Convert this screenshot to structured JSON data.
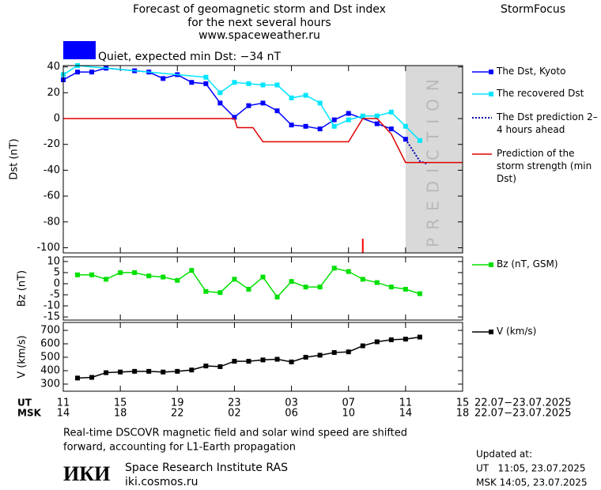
{
  "header": {
    "title": [
      "Forecast of geomagnetic storm and Dst index",
      "for the next several hours",
      "www.spaceweather.ru"
    ],
    "brand": "StormFocus",
    "status": "Quiet, expected min Dst: −34 nT",
    "status_color": "#0000ff"
  },
  "chart_data": [
    {
      "type": "line",
      "ylabel": "Dst (nT)",
      "xlim": [
        0,
        28
      ],
      "ylim": [
        -104,
        41
      ],
      "yticks": [
        40,
        20,
        0,
        -20,
        -40,
        -60,
        -80,
        -100
      ],
      "shade": {
        "from": 24,
        "to": 28,
        "label": "PREDICTION",
        "color": "#d9d9d9"
      },
      "marker_x": 21,
      "marker_color": "#ff0000",
      "series": [
        {
          "name": "The Dst, Kyoto",
          "color": "#0000ff",
          "marker": "square",
          "dash": "solid",
          "x": [
            0,
            1,
            2,
            3,
            5,
            6,
            7,
            8,
            9,
            10,
            11,
            12,
            13,
            14,
            15,
            16,
            17,
            18,
            19,
            20,
            22,
            23,
            24
          ],
          "values": [
            30,
            36,
            36,
            39,
            37,
            36,
            31,
            34,
            28,
            27,
            12,
            1,
            10,
            12,
            6,
            -5,
            -6,
            -8,
            -1,
            4,
            -4,
            -8,
            -16
          ]
        },
        {
          "name": "The recovered Dst",
          "color": "#00e5ff",
          "marker": "square",
          "dash": "solid",
          "x": [
            0,
            1,
            10,
            11,
            12,
            13,
            14,
            15,
            16,
            17,
            18,
            19,
            20,
            21,
            22,
            23,
            24,
            25
          ],
          "values": [
            34,
            41,
            32,
            20,
            28,
            27,
            26,
            26,
            16,
            18,
            12,
            -6,
            -1,
            2,
            2,
            5,
            -6,
            -17
          ]
        },
        {
          "name": "The Dst prediction 2–4 hours ahead",
          "color": "#0000aa",
          "marker": "none",
          "dash": "dotted",
          "x": [
            24,
            25,
            25.5
          ],
          "values": [
            -16,
            -33,
            -35
          ]
        },
        {
          "name": "Prediction of the storm strength (min Dst)",
          "color": "#e00000",
          "marker": "none",
          "dash": "solid",
          "x": [
            0,
            12,
            12.2,
            13.3,
            14,
            20,
            21,
            22,
            23,
            24,
            28
          ],
          "values": [
            0,
            0,
            -7,
            -7,
            -18,
            -18,
            0,
            0,
            -12,
            -34,
            -34
          ]
        }
      ]
    },
    {
      "type": "line",
      "ylabel": "Bz (nT)",
      "xlim": [
        0,
        28
      ],
      "ylim": [
        -16.4,
        12.1
      ],
      "yticks": [
        10,
        5,
        0,
        -5,
        -10,
        -15
      ],
      "series": [
        {
          "name": "Bz (nT, GSM)",
          "color": "#00e000",
          "marker": "square",
          "dash": "solid",
          "x": [
            1,
            2,
            3,
            4,
            5,
            6,
            7,
            8,
            9,
            10,
            11,
            12,
            13,
            14,
            15,
            16,
            17,
            18,
            19,
            20,
            21,
            22,
            23,
            24,
            25
          ],
          "values": [
            4,
            4,
            2,
            5,
            5,
            3.5,
            3,
            1.5,
            6,
            -3.5,
            -4,
            2,
            -2.5,
            3,
            -6,
            1,
            -1.5,
            -1.5,
            7,
            5.5,
            2,
            0.5,
            -1.5,
            -2.5,
            -4.5
          ]
        }
      ]
    },
    {
      "type": "line",
      "ylabel": "V (km/s)",
      "xlim": [
        0,
        28
      ],
      "ylim": [
        247,
        759
      ],
      "yticks": [
        700,
        600,
        500,
        400,
        300
      ],
      "xlabel": "UT",
      "xlabel_msk": "MSK",
      "xticks": [
        {
          "value": 0,
          "label": "11"
        },
        {
          "value": 4,
          "label": "15"
        },
        {
          "value": 8,
          "label": "19"
        },
        {
          "value": 12,
          "label": "23"
        },
        {
          "value": 16,
          "label": "03"
        },
        {
          "value": 20,
          "label": "07"
        },
        {
          "value": 24,
          "label": "11"
        },
        {
          "value": 28,
          "label": "15"
        }
      ],
      "xticks_msk": [
        {
          "value": 0,
          "label": "14"
        },
        {
          "value": 4,
          "label": "18"
        },
        {
          "value": 8,
          "label": "22"
        },
        {
          "value": 12,
          "label": "02"
        },
        {
          "value": 16,
          "label": "06"
        },
        {
          "value": 20,
          "label": "10"
        },
        {
          "value": 24,
          "label": "14"
        },
        {
          "value": 28,
          "label": "18"
        }
      ],
      "date_range": "22.07−23.07.2025",
      "date_range_msk": "22.07−23.07.2025",
      "series": [
        {
          "name": "V (km/s)",
          "color": "#000000",
          "marker": "square",
          "dash": "solid",
          "x": [
            1,
            2,
            3,
            4,
            5,
            6,
            7,
            8,
            9,
            10,
            11,
            12,
            13,
            14,
            15,
            16,
            17,
            18,
            19,
            20,
            21,
            22,
            23,
            24,
            25
          ],
          "values": [
            345,
            350,
            385,
            390,
            395,
            395,
            390,
            395,
            405,
            435,
            430,
            470,
            470,
            480,
            485,
            465,
            500,
            515,
            535,
            540,
            585,
            615,
            630,
            635,
            650
          ]
        }
      ]
    }
  ],
  "footer": {
    "note": [
      "Real-time DSCOVR magnetic field and solar wind speed are shifted",
      "forward, accounting for L1-Earth propagation"
    ],
    "logo": "ИКИ",
    "institute": "Space Research Institute RAS",
    "site": "iki.cosmos.ru",
    "updated": [
      "Updated at:",
      "UT   11:05, 23.07.2025",
      "MSK 14:05, 23.07.2025"
    ]
  }
}
